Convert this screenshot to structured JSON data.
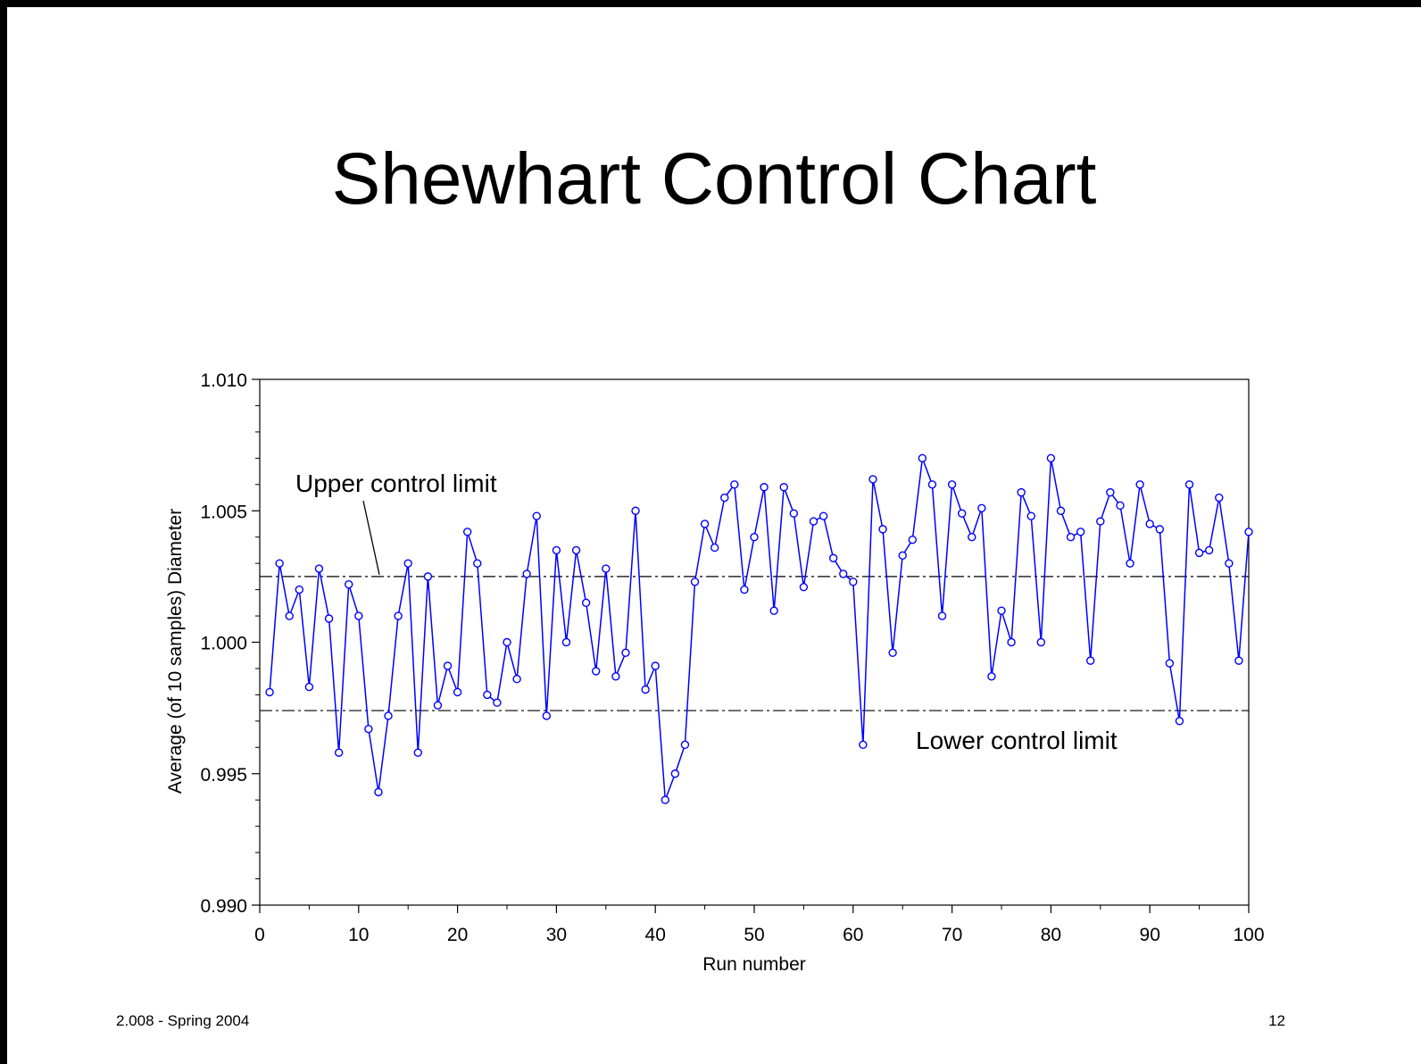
{
  "slide": {
    "title": "Shewhart Control Chart",
    "footer_left": "2.008 - Spring 2004",
    "page_number": "12"
  },
  "colors": {
    "series": "#0000ff",
    "axis": "#000000",
    "limit": "#000000"
  },
  "chart_data": {
    "type": "line",
    "title": "",
    "xlabel": "Run number",
    "ylabel": "Average (of 10 samples) Diameter",
    "xlim": [
      0,
      100
    ],
    "ylim": [
      0.99,
      1.01
    ],
    "xticks": [
      0,
      10,
      20,
      30,
      40,
      50,
      60,
      70,
      80,
      90,
      100
    ],
    "xtick_labels": [
      "0",
      "10",
      "20",
      "30",
      "40",
      "50",
      "60",
      "70",
      "80",
      "90",
      "100"
    ],
    "yticks": [
      0.99,
      0.995,
      1.0,
      1.005,
      1.01
    ],
    "ytick_labels": [
      "0.990",
      "0.995",
      "1.000",
      "1.005",
      "1.010"
    ],
    "grid": false,
    "marker": "open-circle",
    "control_limits": {
      "upper": {
        "value": 1.0025,
        "label": "Upper control limit"
      },
      "lower": {
        "value": 0.9974,
        "label": "Lower control limit"
      }
    },
    "x": [
      1,
      2,
      3,
      4,
      5,
      6,
      7,
      8,
      9,
      10,
      11,
      12,
      13,
      14,
      15,
      16,
      17,
      18,
      19,
      20,
      21,
      22,
      23,
      24,
      25,
      26,
      27,
      28,
      29,
      30,
      31,
      32,
      33,
      34,
      35,
      36,
      37,
      38,
      39,
      40,
      41,
      42,
      43,
      44,
      45,
      46,
      47,
      48,
      49,
      50,
      51,
      52,
      53,
      54,
      55,
      56,
      57,
      58,
      59,
      60,
      61,
      62,
      63,
      64,
      65,
      66,
      67,
      68,
      69,
      70,
      71,
      72,
      73,
      74,
      75,
      76,
      77,
      78,
      79,
      80,
      81,
      82,
      83,
      84,
      85,
      86,
      87,
      88,
      89,
      90,
      91,
      92,
      93,
      94,
      95,
      96,
      97,
      98,
      99,
      100
    ],
    "series": [
      {
        "values": [
          0.9981,
          1.003,
          1.001,
          1.002,
          0.9983,
          1.0028,
          1.0009,
          0.9958,
          1.0022,
          1.001,
          0.9967,
          0.9943,
          0.9972,
          1.001,
          1.003,
          0.9958,
          1.0025,
          0.9976,
          0.9991,
          0.9981,
          1.0042,
          1.003,
          0.998,
          0.9977,
          1.0,
          0.9986,
          1.0026,
          1.0048,
          0.9972,
          1.0035,
          1.0,
          1.0035,
          1.0015,
          0.9989,
          1.0028,
          0.9987,
          0.9996,
          1.005,
          0.9982,
          0.9991,
          0.994,
          0.995,
          0.9961,
          1.0023,
          1.0045,
          1.0036,
          1.0055,
          1.006,
          1.002,
          1.004,
          1.0059,
          1.0012,
          1.0059,
          1.0049,
          1.0021,
          1.0046,
          1.0048,
          1.0032,
          1.0026,
          1.0023,
          0.9961,
          1.0062,
          1.0043,
          0.9996,
          1.0033,
          1.0039,
          1.007,
          1.006,
          1.001,
          1.006,
          1.0049,
          1.004,
          1.0051,
          0.9987,
          1.0012,
          1.0,
          1.0057,
          1.0048,
          1.0,
          1.007,
          1.005,
          1.004,
          1.0042,
          0.9993,
          1.0046,
          1.0057,
          1.0052,
          1.003,
          1.006,
          1.0045,
          1.0043,
          0.9992,
          0.997,
          1.006,
          1.0034,
          1.0035,
          1.0055,
          1.003,
          0.9993,
          1.0042
        ]
      }
    ]
  }
}
